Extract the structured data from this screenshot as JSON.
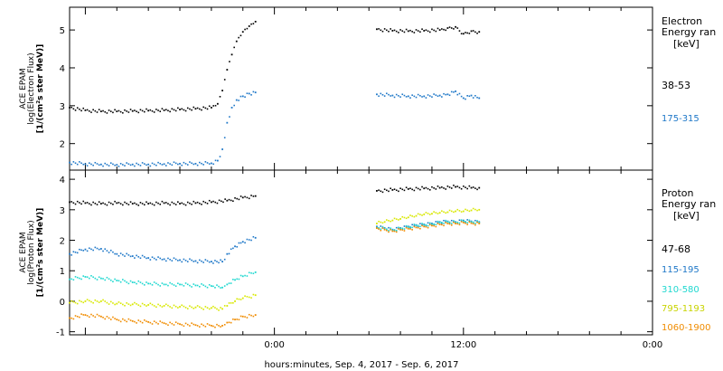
{
  "xlabel": "hours:minutes, Sep.  4, 2017 - Sep.  6, 2017",
  "x_tick_labels": [
    {
      "t": 0,
      "label": "0:00"
    },
    {
      "t": 12,
      "label": "12:00"
    },
    {
      "t": 24,
      "label": "0:00"
    }
  ],
  "panels": [
    {
      "id": "electron",
      "ylabel_lines": [
        "ACE EPAM",
        "log(Electron Flux)",
        "[1/(cm²s ster MeV)]"
      ],
      "legend_title": [
        "Electron",
        "Energy ran",
        "[keV]"
      ],
      "legend_items": [
        {
          "label": "38-53",
          "color": "#000000"
        },
        {
          "label": "175-315",
          "color": "#1f78c8"
        }
      ]
    },
    {
      "id": "proton",
      "ylabel_lines": [
        "ACE EPAM",
        "log(Proton Flux)",
        "[1/(cm²s ster MeV)]"
      ],
      "legend_title": [
        "Proton",
        "Energy ran",
        "[keV]"
      ],
      "legend_items": [
        {
          "label": "47-68",
          "color": "#000000"
        },
        {
          "label": "115-195",
          "color": "#1f78c8"
        },
        {
          "label": "310-580",
          "color": "#20d8d0"
        },
        {
          "label": "795-1193",
          "color": "#d8e800"
        },
        {
          "label": "1060-1900",
          "color": "#f08c00"
        }
      ]
    }
  ],
  "chart_data": [
    {
      "type": "scatter",
      "x_unit": "hours relative to Sep 5 0:00",
      "xlim": [
        -13,
        24
      ],
      "ylim": [
        1.3,
        5.6
      ],
      "yticks": [
        2,
        3,
        4,
        5
      ],
      "series": [
        {
          "name": "38-53",
          "color": "#000000",
          "segments": [
            {
              "points": [
                [
                  -13,
                  2.95
                ],
                [
                  -12,
                  2.88
                ],
                [
                  -11,
                  2.85
                ],
                [
                  -10,
                  2.85
                ],
                [
                  -9,
                  2.86
                ],
                [
                  -8,
                  2.87
                ],
                [
                  -7,
                  2.88
                ],
                [
                  -6,
                  2.9
                ],
                [
                  -5,
                  2.92
                ],
                [
                  -4,
                  2.95
                ],
                [
                  -3.6,
                  3.05
                ],
                [
                  -3.3,
                  3.4
                ],
                [
                  -3.0,
                  3.95
                ],
                [
                  -2.7,
                  4.35
                ],
                [
                  -2.4,
                  4.7
                ],
                [
                  -2.0,
                  4.95
                ],
                [
                  -1.6,
                  5.1
                ],
                [
                  -1.2,
                  5.22
                ]
              ]
            },
            {
              "points": [
                [
                  6.5,
                  5.02
                ],
                [
                  7.5,
                  4.98
                ],
                [
                  8.5,
                  4.97
                ],
                [
                  9.5,
                  4.98
                ],
                [
                  10.5,
                  5.0
                ],
                [
                  11.0,
                  5.05
                ],
                [
                  11.5,
                  5.08
                ],
                [
                  12.0,
                  4.9
                ],
                [
                  12.5,
                  4.97
                ],
                [
                  13.0,
                  4.95
                ]
              ]
            }
          ]
        },
        {
          "name": "175-315",
          "color": "#1f78c8",
          "segments": [
            {
              "points": [
                [
                  -13,
                  1.5
                ],
                [
                  -12,
                  1.46
                ],
                [
                  -11,
                  1.45
                ],
                [
                  -10,
                  1.44
                ],
                [
                  -9,
                  1.45
                ],
                [
                  -8,
                  1.45
                ],
                [
                  -7,
                  1.46
                ],
                [
                  -6,
                  1.47
                ],
                [
                  -5,
                  1.47
                ],
                [
                  -4,
                  1.48
                ],
                [
                  -3.6,
                  1.55
                ],
                [
                  -3.3,
                  1.85
                ],
                [
                  -3.0,
                  2.55
                ],
                [
                  -2.7,
                  2.95
                ],
                [
                  -2.4,
                  3.15
                ],
                [
                  -2.0,
                  3.25
                ],
                [
                  -1.6,
                  3.32
                ],
                [
                  -1.2,
                  3.35
                ]
              ]
            },
            {
              "points": [
                [
                  6.5,
                  3.3
                ],
                [
                  7.5,
                  3.27
                ],
                [
                  8.5,
                  3.25
                ],
                [
                  9.5,
                  3.25
                ],
                [
                  10.5,
                  3.27
                ],
                [
                  11.0,
                  3.3
                ],
                [
                  11.5,
                  3.38
                ],
                [
                  12.0,
                  3.2
                ],
                [
                  12.5,
                  3.27
                ],
                [
                  13.0,
                  3.2
                ]
              ]
            }
          ]
        }
      ]
    },
    {
      "type": "scatter",
      "x_unit": "hours relative to Sep 5 0:00",
      "xlim": [
        -13,
        24
      ],
      "ylim": [
        -1.1,
        4.3
      ],
      "yticks": [
        -1,
        0,
        1,
        2,
        3,
        4
      ],
      "series": [
        {
          "name": "47-68",
          "color": "#000000",
          "segments": [
            {
              "points": [
                [
                  -13,
                  3.25
                ],
                [
                  -12,
                  3.22
                ],
                [
                  -11,
                  3.2
                ],
                [
                  -10,
                  3.22
                ],
                [
                  -9,
                  3.2
                ],
                [
                  -8,
                  3.2
                ],
                [
                  -7,
                  3.22
                ],
                [
                  -6,
                  3.2
                ],
                [
                  -5,
                  3.22
                ],
                [
                  -4,
                  3.25
                ],
                [
                  -3,
                  3.3
                ],
                [
                  -2,
                  3.4
                ],
                [
                  -1.2,
                  3.45
                ]
              ]
            },
            {
              "points": [
                [
                  6.5,
                  3.62
                ],
                [
                  7.5,
                  3.65
                ],
                [
                  8.5,
                  3.68
                ],
                [
                  9.5,
                  3.7
                ],
                [
                  10.5,
                  3.72
                ],
                [
                  11.5,
                  3.75
                ],
                [
                  12.5,
                  3.72
                ],
                [
                  13.0,
                  3.72
                ]
              ]
            }
          ]
        },
        {
          "name": "115-195",
          "color": "#1f78c8",
          "segments": [
            {
              "points": [
                [
                  -13,
                  1.55
                ],
                [
                  -12,
                  1.7
                ],
                [
                  -11,
                  1.72
                ],
                [
                  -10,
                  1.55
                ],
                [
                  -9,
                  1.48
                ],
                [
                  -8,
                  1.42
                ],
                [
                  -7,
                  1.38
                ],
                [
                  -6,
                  1.35
                ],
                [
                  -5,
                  1.32
                ],
                [
                  -4,
                  1.3
                ],
                [
                  -3.3,
                  1.3
                ],
                [
                  -3.0,
                  1.55
                ],
                [
                  -2.5,
                  1.8
                ],
                [
                  -2,
                  1.95
                ],
                [
                  -1.2,
                  2.08
                ]
              ]
            },
            {
              "points": [
                [
                  6.5,
                  2.45
                ],
                [
                  7.0,
                  2.4
                ],
                [
                  7.5,
                  2.35
                ],
                [
                  8.0,
                  2.4
                ],
                [
                  8.5,
                  2.45
                ],
                [
                  9.0,
                  2.5
                ],
                [
                  9.5,
                  2.52
                ],
                [
                  10.0,
                  2.55
                ],
                [
                  10.5,
                  2.6
                ],
                [
                  11.0,
                  2.62
                ],
                [
                  11.5,
                  2.6
                ],
                [
                  12.0,
                  2.65
                ],
                [
                  12.5,
                  2.62
                ],
                [
                  13.0,
                  2.6
                ]
              ]
            }
          ]
        },
        {
          "name": "310-580",
          "color": "#20d8d0",
          "segments": [
            {
              "points": [
                [
                  -13,
                  0.72
                ],
                [
                  -12,
                  0.8
                ],
                [
                  -11,
                  0.75
                ],
                [
                  -10,
                  0.68
                ],
                [
                  -9,
                  0.62
                ],
                [
                  -8,
                  0.58
                ],
                [
                  -7,
                  0.55
                ],
                [
                  -6,
                  0.55
                ],
                [
                  -5,
                  0.52
                ],
                [
                  -4,
                  0.5
                ],
                [
                  -3.3,
                  0.45
                ],
                [
                  -3,
                  0.55
                ],
                [
                  -2.5,
                  0.7
                ],
                [
                  -2,
                  0.82
                ],
                [
                  -1.2,
                  0.95
                ]
              ]
            },
            {
              "points": [
                [
                  6.5,
                  2.42
                ],
                [
                  7.0,
                  2.38
                ],
                [
                  7.5,
                  2.33
                ],
                [
                  8.0,
                  2.38
                ],
                [
                  8.5,
                  2.43
                ],
                [
                  9.0,
                  2.48
                ],
                [
                  9.5,
                  2.5
                ],
                [
                  10.0,
                  2.52
                ],
                [
                  10.5,
                  2.58
                ],
                [
                  11.0,
                  2.6
                ],
                [
                  11.5,
                  2.58
                ],
                [
                  12.0,
                  2.62
                ],
                [
                  12.5,
                  2.6
                ],
                [
                  13.0,
                  2.58
                ]
              ]
            }
          ]
        },
        {
          "name": "795-1193",
          "color": "#d8e800",
          "segments": [
            {
              "points": [
                [
                  -13,
                  -0.05
                ],
                [
                  -12,
                  0.0
                ],
                [
                  -11,
                  0.0
                ],
                [
                  -10,
                  -0.08
                ],
                [
                  -9,
                  -0.1
                ],
                [
                  -8,
                  -0.12
                ],
                [
                  -7,
                  -0.15
                ],
                [
                  -6,
                  -0.18
                ],
                [
                  -5,
                  -0.2
                ],
                [
                  -4,
                  -0.22
                ],
                [
                  -3.3,
                  -0.25
                ],
                [
                  -3,
                  -0.15
                ],
                [
                  -2.5,
                  0.0
                ],
                [
                  -2,
                  0.1
                ],
                [
                  -1.2,
                  0.2
                ]
              ]
            },
            {
              "points": [
                [
                  6.5,
                  2.55
                ],
                [
                  7.0,
                  2.6
                ],
                [
                  7.5,
                  2.65
                ],
                [
                  8.0,
                  2.7
                ],
                [
                  8.5,
                  2.75
                ],
                [
                  9.0,
                  2.8
                ],
                [
                  9.5,
                  2.85
                ],
                [
                  10.0,
                  2.87
                ],
                [
                  10.5,
                  2.9
                ],
                [
                  11.0,
                  2.92
                ],
                [
                  11.5,
                  2.95
                ],
                [
                  12.0,
                  2.95
                ],
                [
                  12.5,
                  2.98
                ],
                [
                  13.0,
                  3.0
                ]
              ]
            }
          ]
        },
        {
          "name": "1060-1900",
          "color": "#f08c00",
          "segments": [
            {
              "points": [
                [
                  -13,
                  -0.55
                ],
                [
                  -12,
                  -0.45
                ],
                [
                  -11,
                  -0.5
                ],
                [
                  -10,
                  -0.6
                ],
                [
                  -9,
                  -0.65
                ],
                [
                  -8,
                  -0.68
                ],
                [
                  -7,
                  -0.72
                ],
                [
                  -6,
                  -0.75
                ],
                [
                  -5,
                  -0.78
                ],
                [
                  -4,
                  -0.8
                ],
                [
                  -3.3,
                  -0.8
                ],
                [
                  -3,
                  -0.7
                ],
                [
                  -2.5,
                  -0.6
                ],
                [
                  -2,
                  -0.5
                ],
                [
                  -1.2,
                  -0.45
                ]
              ]
            },
            {
              "points": [
                [
                  6.5,
                  2.4
                ],
                [
                  7.0,
                  2.35
                ],
                [
                  7.5,
                  2.3
                ],
                [
                  8.0,
                  2.35
                ],
                [
                  8.5,
                  2.38
                ],
                [
                  9.0,
                  2.42
                ],
                [
                  9.5,
                  2.45
                ],
                [
                  10.0,
                  2.48
                ],
                [
                  10.5,
                  2.52
                ],
                [
                  11.0,
                  2.55
                ],
                [
                  11.5,
                  2.55
                ],
                [
                  12.0,
                  2.58
                ],
                [
                  12.5,
                  2.56
                ],
                [
                  13.0,
                  2.55
                ]
              ]
            }
          ]
        }
      ]
    }
  ]
}
